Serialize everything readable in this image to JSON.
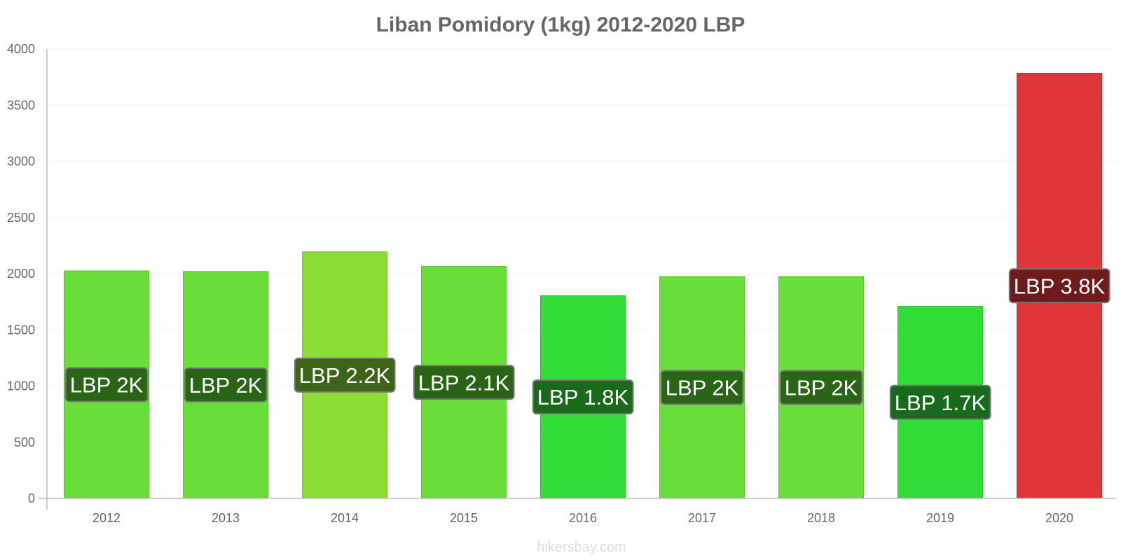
{
  "chart_data": {
    "type": "bar",
    "title": "Liban Pomidory (1kg) 2012-2020 LBP",
    "xlabel": "",
    "ylabel": "",
    "categories": [
      "2012",
      "2013",
      "2014",
      "2015",
      "2016",
      "2017",
      "2018",
      "2019",
      "2020"
    ],
    "values": [
      2025,
      2020,
      2195,
      2065,
      1805,
      1975,
      1975,
      1710,
      3785
    ],
    "data_labels": [
      "LBP 2K",
      "LBP 2K",
      "LBP 2.2K",
      "LBP 2.1K",
      "LBP 1.8K",
      "LBP 2K",
      "LBP 2K",
      "LBP 1.7K",
      "LBP 3.8K"
    ],
    "bar_colors": [
      "#6ade38",
      "#6ade38",
      "#8bdc33",
      "#6ade38",
      "#33dd38",
      "#6ade38",
      "#6ade38",
      "#33dd38",
      "#dd3538"
    ],
    "bar_stroke_colors": [
      "#55c42a",
      "#55c42a",
      "#76c426",
      "#55c42a",
      "#26c22a",
      "#55c42a",
      "#55c42a",
      "#26c22a",
      "#c62a2d"
    ],
    "label_box_colors": [
      "#2a6417",
      "#2a6417",
      "#3d6418",
      "#2a6417",
      "#196a1c",
      "#2a6417",
      "#2a6417",
      "#196a1c",
      "#6f1a1c"
    ],
    "ylim": [
      0,
      4000
    ],
    "yticks": [
      "0",
      "500",
      "1000",
      "1500",
      "2000",
      "2500",
      "3000",
      "3500",
      "4000"
    ],
    "grid": true,
    "legend": "none"
  },
  "watermark": "hikersbay.com",
  "colors": {
    "text": "#666666",
    "axis": "#bbbbbb",
    "grid": "#f3f3f3"
  }
}
